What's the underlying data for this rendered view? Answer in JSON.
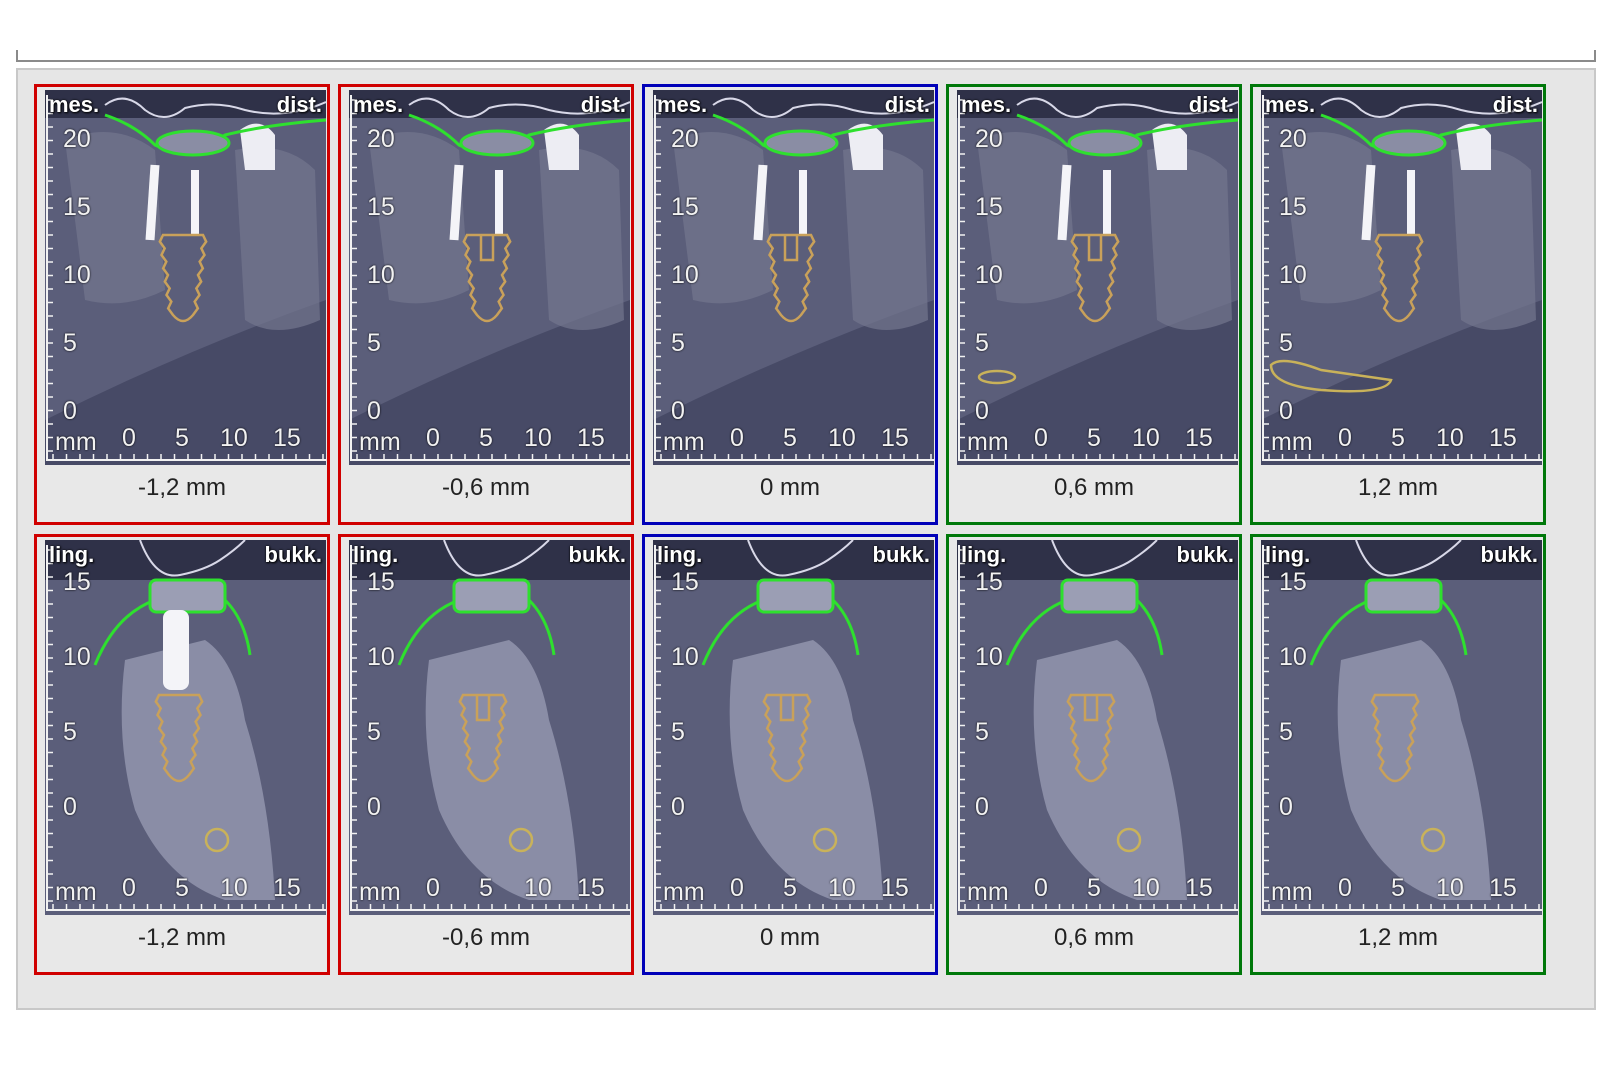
{
  "rows": [
    {
      "orientation": "sagittal",
      "left_label": "mes.",
      "right_label": "dist.",
      "y_ticks": [
        "20",
        "15",
        "10",
        "5",
        "0"
      ],
      "x_ticks": [
        "0",
        "5",
        "10",
        "15"
      ],
      "unit": "mm",
      "tiles": [
        {
          "offset": "-1,2 mm",
          "frame": "red"
        },
        {
          "offset": "-0,6 mm",
          "frame": "red"
        },
        {
          "offset": "0 mm",
          "frame": "blue"
        },
        {
          "offset": "0,6 mm",
          "frame": "green"
        },
        {
          "offset": "1,2 mm",
          "frame": "green"
        }
      ]
    },
    {
      "orientation": "cross-section",
      "left_label": "ling.",
      "right_label": "bukk.",
      "y_ticks": [
        "15",
        "10",
        "5",
        "0"
      ],
      "x_ticks": [
        "0",
        "5",
        "10",
        "15"
      ],
      "unit": "mm",
      "tiles": [
        {
          "offset": "-1,2 mm",
          "frame": "red"
        },
        {
          "offset": "-0,6 mm",
          "frame": "red"
        },
        {
          "offset": "0 mm",
          "frame": "blue"
        },
        {
          "offset": "0,6 mm",
          "frame": "green"
        },
        {
          "offset": "1,2 mm",
          "frame": "green"
        }
      ]
    }
  ],
  "colors": {
    "frame_red": "#d00000",
    "frame_blue": "#0000b8",
    "frame_green": "#00780a",
    "implant_outline": "#c9a15a",
    "gingiva_outline": "#2ee02e",
    "soft_tissue_line": "#d8d8e8",
    "nerve_outline": "#c9b25a"
  }
}
